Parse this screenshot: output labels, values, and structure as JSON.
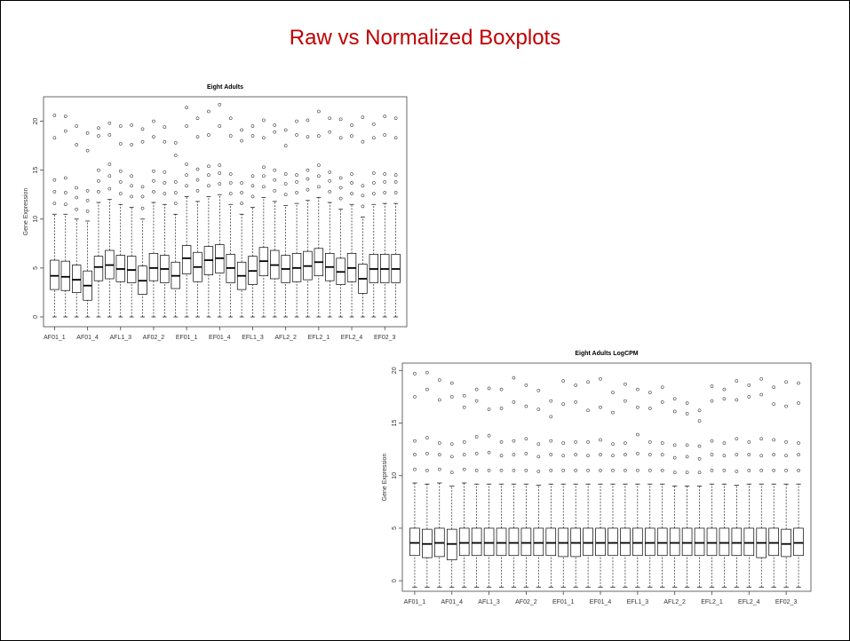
{
  "title": "Raw vs Normalized Boxplots",
  "chart_data": [
    {
      "type": "box",
      "title": "Eight Adults",
      "y_label": "Gene Expression",
      "categories": [
        "AF01_1",
        null,
        null,
        "AF01_4",
        null,
        null,
        "AFL1_3",
        null,
        null,
        "AF02_2",
        null,
        null,
        "EF01_1",
        null,
        null,
        "EF01_4",
        null,
        null,
        "EFL1_3",
        null,
        null,
        "AFL2_2",
        null,
        null,
        "EFL2_1",
        null,
        null,
        "EFL2_4",
        null,
        null,
        "EF02_3",
        null
      ],
      "ylim": [
        -1,
        22.5
      ],
      "yticks": [
        0,
        5,
        10,
        15,
        20
      ],
      "color": "#000000",
      "boxes": [
        {
          "whislo": 0,
          "q1": 2.8,
          "med": 4.2,
          "q3": 5.8,
          "whishi": 10.5,
          "fliers": [
            11.6,
            12.8,
            14,
            18.3,
            20.6
          ]
        },
        {
          "whislo": 0,
          "q1": 2.7,
          "med": 4.1,
          "q3": 5.7,
          "whishi": 10.5,
          "fliers": [
            11.5,
            12.7,
            14.2,
            19,
            20.5
          ]
        },
        {
          "whislo": 0,
          "q1": 2.5,
          "med": 3.8,
          "q3": 5.3,
          "whishi": 10,
          "fliers": [
            11,
            12.2,
            13.2,
            17.6,
            19.5
          ]
        },
        {
          "whislo": 0,
          "q1": 1.7,
          "med": 3.2,
          "q3": 4.7,
          "whishi": 9.8,
          "fliers": [
            10.8,
            11.9,
            12.9,
            17,
            18.8
          ]
        },
        {
          "whislo": 0,
          "q1": 3.7,
          "med": 5.1,
          "q3": 6.2,
          "whishi": 11.7,
          "fliers": [
            12.8,
            13.9,
            15,
            18.5,
            19.3
          ]
        },
        {
          "whislo": 0,
          "q1": 3.9,
          "med": 5.3,
          "q3": 6.8,
          "whishi": 12,
          "fliers": [
            13.1,
            14.4,
            15.6,
            18.6,
            19.8
          ]
        },
        {
          "whislo": 0,
          "q1": 3.6,
          "med": 4.9,
          "q3": 6.3,
          "whishi": 11.5,
          "fliers": [
            12.6,
            13.8,
            14.9,
            17.7,
            19.5
          ]
        },
        {
          "whislo": 0,
          "q1": 3.5,
          "med": 4.8,
          "q3": 6.2,
          "whishi": 11.2,
          "fliers": [
            12.3,
            13.4,
            14.4,
            17.6,
            19.6
          ]
        },
        {
          "whislo": 0,
          "q1": 2.3,
          "med": 3.7,
          "q3": 5.2,
          "whishi": 10,
          "fliers": [
            11.1,
            12.3,
            13.3,
            17.9,
            19.2
          ]
        },
        {
          "whislo": 0,
          "q1": 3.7,
          "med": 5,
          "q3": 6.5,
          "whishi": 11.7,
          "fliers": [
            12.8,
            13.9,
            14.9,
            18.4,
            20
          ]
        },
        {
          "whislo": 0,
          "q1": 3.5,
          "med": 4.9,
          "q3": 6.3,
          "whishi": 11.5,
          "fliers": [
            12.6,
            13.7,
            14.8,
            17.9,
            19.4
          ]
        },
        {
          "whislo": 0,
          "q1": 2.9,
          "med": 4.2,
          "q3": 5.6,
          "whishi": 10.5,
          "fliers": [
            11.6,
            12.7,
            13.8,
            16.5,
            17.8
          ]
        },
        {
          "whislo": 0,
          "q1": 4.4,
          "med": 6,
          "q3": 7.3,
          "whishi": 12.3,
          "fliers": [
            13.4,
            14.5,
            15.6,
            19.5,
            21.4
          ]
        },
        {
          "whislo": 0,
          "q1": 3.6,
          "med": 5.1,
          "q3": 6.6,
          "whishi": 11.8,
          "fliers": [
            12.9,
            14,
            15.1,
            18.4,
            20.3
          ]
        },
        {
          "whislo": 0,
          "q1": 4.3,
          "med": 5.8,
          "q3": 7.2,
          "whishi": 12.3,
          "fliers": [
            13.4,
            14.5,
            15.4,
            18.6,
            21
          ]
        },
        {
          "whislo": 0,
          "q1": 4.5,
          "med": 6,
          "q3": 7.4,
          "whishi": 12.5,
          "fliers": [
            13.6,
            14.7,
            15.5,
            19.5,
            21.7
          ]
        },
        {
          "whislo": 0,
          "q1": 3.5,
          "med": 5,
          "q3": 6.4,
          "whishi": 11.5,
          "fliers": [
            12.6,
            13.7,
            14.6,
            18.5,
            20.3
          ]
        },
        {
          "whislo": 0,
          "q1": 2.8,
          "med": 4.2,
          "q3": 5.6,
          "whishi": 10.5,
          "fliers": [
            11.6,
            12.7,
            13.7,
            18,
            19.1
          ]
        },
        {
          "whislo": 0,
          "q1": 3.3,
          "med": 4.7,
          "q3": 6.2,
          "whishi": 11.2,
          "fliers": [
            12.3,
            13.4,
            14.4,
            18.5,
            19.5
          ]
        },
        {
          "whislo": 0,
          "q1": 4.2,
          "med": 5.7,
          "q3": 7.1,
          "whishi": 12.2,
          "fliers": [
            13.3,
            14.4,
            15.3,
            18.3,
            20.1
          ]
        },
        {
          "whislo": 0,
          "q1": 3.9,
          "med": 5.3,
          "q3": 6.8,
          "whishi": 11.8,
          "fliers": [
            12.9,
            14,
            15,
            18.9,
            19.6
          ]
        },
        {
          "whislo": 0,
          "q1": 3.5,
          "med": 4.9,
          "q3": 6.3,
          "whishi": 11.4,
          "fliers": [
            12.5,
            13.6,
            14.6,
            17.5,
            19.1
          ]
        },
        {
          "whislo": 0,
          "q1": 3.6,
          "med": 5,
          "q3": 6.5,
          "whishi": 11.6,
          "fliers": [
            12.7,
            13.8,
            14.5,
            18.6,
            20
          ]
        },
        {
          "whislo": 0,
          "q1": 3.8,
          "med": 5.2,
          "q3": 6.7,
          "whishi": 11.9,
          "fliers": [
            13,
            14.1,
            15,
            18.4,
            20.1
          ]
        },
        {
          "whislo": 0,
          "q1": 4.2,
          "med": 5.6,
          "q3": 7,
          "whishi": 12.2,
          "fliers": [
            13.3,
            14.4,
            15.5,
            18.5,
            21
          ]
        },
        {
          "whislo": 0,
          "q1": 3.7,
          "med": 5.1,
          "q3": 6.5,
          "whishi": 11.7,
          "fliers": [
            12.8,
            13.9,
            14.8,
            18.9,
            20.3
          ]
        },
        {
          "whislo": 0,
          "q1": 3.3,
          "med": 4.6,
          "q3": 6,
          "whishi": 11,
          "fliers": [
            12.1,
            13.2,
            14.2,
            18.3,
            20.2
          ]
        },
        {
          "whislo": 0,
          "q1": 3.6,
          "med": 5,
          "q3": 6.5,
          "whishi": 11.5,
          "fliers": [
            12.6,
            13.7,
            14.6,
            18.5,
            19.6
          ]
        },
        {
          "whislo": 0,
          "q1": 2.4,
          "med": 3.9,
          "q3": 5.4,
          "whishi": 10.2,
          "fliers": [
            11.3,
            12.4,
            13.4,
            17.9,
            20.4
          ]
        },
        {
          "whislo": 0,
          "q1": 3.5,
          "med": 4.9,
          "q3": 6.4,
          "whishi": 11.5,
          "fliers": [
            12.6,
            13.7,
            14.7,
            18.3,
            19.7
          ]
        },
        {
          "whislo": 0,
          "q1": 3.5,
          "med": 4.9,
          "q3": 6.4,
          "whishi": 11.6,
          "fliers": [
            12.7,
            13.8,
            14.6,
            18.6,
            20.5
          ]
        },
        {
          "whislo": 0,
          "q1": 3.5,
          "med": 4.9,
          "q3": 6.4,
          "whishi": 11.6,
          "fliers": [
            12.7,
            13.8,
            14.5,
            18.3,
            20.3
          ]
        }
      ]
    },
    {
      "type": "box",
      "title": "Eight Adults LogCPM",
      "y_label": "Gene Expression",
      "categories": [
        "AF01_1",
        null,
        null,
        "AF01_4",
        null,
        null,
        "AFL1_3",
        null,
        null,
        "AF02_2",
        null,
        null,
        "EF01_1",
        null,
        null,
        "EF01_4",
        null,
        null,
        "EFL1_3",
        null,
        null,
        "AFL2_2",
        null,
        null,
        "EFL2_1",
        null,
        null,
        "EFL2_4",
        null,
        null,
        "EF02_3",
        null
      ],
      "ylim": [
        -1,
        20.7
      ],
      "yticks": [
        0,
        5,
        10,
        15,
        20
      ],
      "color": "#000000",
      "boxes": [
        {
          "whislo": -0.6,
          "q1": 2.4,
          "med": 3.6,
          "q3": 5,
          "whishi": 9.3,
          "fliers": [
            10.6,
            12,
            13.3,
            17.5,
            19.7
          ]
        },
        {
          "whislo": -0.6,
          "q1": 2.2,
          "med": 3.5,
          "q3": 4.9,
          "whishi": 9.2,
          "fliers": [
            10.5,
            12.1,
            13.6,
            18.2,
            19.8
          ]
        },
        {
          "whislo": -0.6,
          "q1": 2.3,
          "med": 3.6,
          "q3": 5,
          "whishi": 9.3,
          "fliers": [
            10.6,
            12,
            13.1,
            17.2,
            19.1
          ]
        },
        {
          "whislo": -0.6,
          "q1": 2,
          "med": 3.5,
          "q3": 4.9,
          "whishi": 9,
          "fliers": [
            10.3,
            11.8,
            13,
            17.5,
            18.8
          ]
        },
        {
          "whislo": -0.6,
          "q1": 2.4,
          "med": 3.6,
          "q3": 5,
          "whishi": 9.3,
          "fliers": [
            10.6,
            12,
            13.2,
            16.5,
            17.6
          ]
        },
        {
          "whislo": -0.6,
          "q1": 2.4,
          "med": 3.6,
          "q3": 5,
          "whishi": 9.2,
          "fliers": [
            10.5,
            12.1,
            13.7,
            17.1,
            18.2
          ]
        },
        {
          "whislo": -0.6,
          "q1": 2.4,
          "med": 3.6,
          "q3": 5,
          "whishi": 9.2,
          "fliers": [
            10.5,
            12.2,
            13.8,
            16.3,
            18.3
          ]
        },
        {
          "whislo": -0.6,
          "q1": 2.4,
          "med": 3.6,
          "q3": 5,
          "whishi": 9.2,
          "fliers": [
            10.5,
            11.9,
            13.2,
            16.4,
            18.2
          ]
        },
        {
          "whislo": -0.6,
          "q1": 2.4,
          "med": 3.6,
          "q3": 5,
          "whishi": 9.2,
          "fliers": [
            10.5,
            12,
            13.3,
            17,
            19.3
          ]
        },
        {
          "whislo": -0.6,
          "q1": 2.4,
          "med": 3.6,
          "q3": 5,
          "whishi": 9.2,
          "fliers": [
            10.5,
            12.1,
            13.5,
            16.6,
            18.6
          ]
        },
        {
          "whislo": -0.6,
          "q1": 2.4,
          "med": 3.6,
          "q3": 5,
          "whishi": 9.1,
          "fliers": [
            10.4,
            11.8,
            13,
            16.3,
            18.1
          ]
        },
        {
          "whislo": -0.6,
          "q1": 2.4,
          "med": 3.6,
          "q3": 5,
          "whishi": 9.2,
          "fliers": [
            10.5,
            12,
            13.3,
            15.6,
            17.1
          ]
        },
        {
          "whislo": -0.6,
          "q1": 2.3,
          "med": 3.6,
          "q3": 5,
          "whishi": 9.2,
          "fliers": [
            10.5,
            11.9,
            13.1,
            16.8,
            19
          ]
        },
        {
          "whislo": -0.6,
          "q1": 2.3,
          "med": 3.6,
          "q3": 5,
          "whishi": 9.2,
          "fliers": [
            10.5,
            12,
            13.2,
            17,
            18.6
          ]
        },
        {
          "whislo": -0.6,
          "q1": 2.4,
          "med": 3.6,
          "q3": 5,
          "whishi": 9.2,
          "fliers": [
            10.5,
            11.9,
            13.2,
            16.2,
            18.9
          ]
        },
        {
          "whislo": -0.6,
          "q1": 2.4,
          "med": 3.6,
          "q3": 5,
          "whishi": 9.2,
          "fliers": [
            10.5,
            12,
            13.4,
            16.5,
            19.2
          ]
        },
        {
          "whislo": -0.6,
          "q1": 2.4,
          "med": 3.6,
          "q3": 5,
          "whishi": 9.2,
          "fliers": [
            10.5,
            11.9,
            13,
            16,
            17.9
          ]
        },
        {
          "whislo": -0.6,
          "q1": 2.4,
          "med": 3.6,
          "q3": 5,
          "whishi": 9.2,
          "fliers": [
            10.5,
            12,
            13.1,
            17.1,
            18.7
          ]
        },
        {
          "whislo": -0.6,
          "q1": 2.4,
          "med": 3.6,
          "q3": 5,
          "whishi": 9.2,
          "fliers": [
            10.5,
            12.1,
            13.9,
            16.5,
            18.2
          ]
        },
        {
          "whislo": -0.6,
          "q1": 2.4,
          "med": 3.6,
          "q3": 5,
          "whishi": 9.2,
          "fliers": [
            10.5,
            12,
            13.2,
            16.4,
            17.9
          ]
        },
        {
          "whislo": -0.6,
          "q1": 2.4,
          "med": 3.6,
          "q3": 5,
          "whishi": 9.2,
          "fliers": [
            10.5,
            12,
            13.1,
            17,
            18.4
          ]
        },
        {
          "whislo": -0.6,
          "q1": 2.4,
          "med": 3.6,
          "q3": 5,
          "whishi": 9,
          "fliers": [
            10.3,
            11.7,
            12.9,
            16.1,
            17.3
          ]
        },
        {
          "whislo": -0.6,
          "q1": 2.4,
          "med": 3.6,
          "q3": 5,
          "whishi": 9,
          "fliers": [
            10.3,
            11.8,
            12.9,
            15.9,
            16.9
          ]
        },
        {
          "whislo": -0.6,
          "q1": 2.4,
          "med": 3.6,
          "q3": 5,
          "whishi": 9,
          "fliers": [
            10.3,
            11.6,
            12.8,
            15.2,
            16.2
          ]
        },
        {
          "whislo": -0.6,
          "q1": 2.4,
          "med": 3.6,
          "q3": 5,
          "whishi": 9.2,
          "fliers": [
            10.5,
            12,
            13.3,
            17.1,
            18.5
          ]
        },
        {
          "whislo": -0.6,
          "q1": 2.4,
          "med": 3.6,
          "q3": 5,
          "whishi": 9.2,
          "fliers": [
            10.5,
            11.9,
            13.1,
            17.3,
            18.2
          ]
        },
        {
          "whislo": -0.6,
          "q1": 2.4,
          "med": 3.6,
          "q3": 5,
          "whishi": 9.1,
          "fliers": [
            10.4,
            12,
            13.5,
            17.2,
            19
          ]
        },
        {
          "whislo": -0.6,
          "q1": 2.4,
          "med": 3.6,
          "q3": 5,
          "whishi": 9.2,
          "fliers": [
            10.5,
            12,
            13.2,
            17.5,
            18.6
          ]
        },
        {
          "whislo": -0.6,
          "q1": 2.2,
          "med": 3.6,
          "q3": 5,
          "whishi": 9.2,
          "fliers": [
            10.5,
            11.9,
            13.5,
            17.7,
            19.2
          ]
        },
        {
          "whislo": -0.6,
          "q1": 2.4,
          "med": 3.6,
          "q3": 5,
          "whishi": 9.2,
          "fliers": [
            10.5,
            12,
            13.4,
            16.8,
            18.4
          ]
        },
        {
          "whislo": -0.6,
          "q1": 2.3,
          "med": 3.5,
          "q3": 4.9,
          "whishi": 9.2,
          "fliers": [
            10.5,
            11.9,
            13.2,
            16.6,
            18.9
          ]
        },
        {
          "whislo": -0.6,
          "q1": 2.4,
          "med": 3.6,
          "q3": 5,
          "whishi": 9.2,
          "fliers": [
            10.5,
            12,
            13.1,
            16.9,
            18.8
          ]
        }
      ]
    }
  ]
}
